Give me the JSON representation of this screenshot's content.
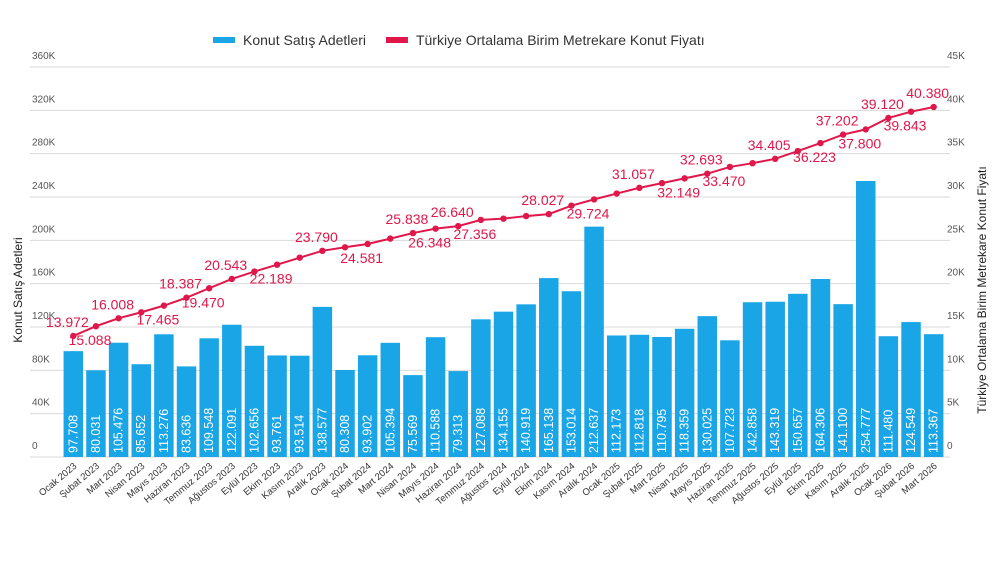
{
  "chart_data": {
    "type": "combo",
    "categories": [
      "Ocak 2023",
      "Şubat 2023",
      "Mart 2023",
      "Nisan 2023",
      "Mayıs 2023",
      "Haziran 2023",
      "Temmuz 2023",
      "Ağustos 2023",
      "Eylül 2023",
      "Ekim 2023",
      "Kasım 2023",
      "Aralık 2023",
      "Ocak 2024",
      "Şubat 2024",
      "Mart 2024",
      "Nisan 2024",
      "Mayıs 2024",
      "Haziran 2024",
      "Temmuz 2024",
      "Ağustos 2024",
      "Eylül 2024",
      "Ekim 2024",
      "Kasım 2024",
      "Aralık 2024",
      "Ocak 2025",
      "Şubat 2025",
      "Mart 2025",
      "Nisan 2025",
      "Mayıs 2025",
      "Haziran 2025",
      "Temmuz 2025",
      "Ağustos 2025",
      "Eylül 2025",
      "Ekim 2025",
      "Kasım 2025",
      "Aralık 2025",
      "Ocak 2026",
      "Şubat 2026",
      "Mart 2026"
    ],
    "series": [
      {
        "name": "Konut Satış Adetleri",
        "type": "bar",
        "color": "#1aa5e6",
        "values": [
          97708,
          80031,
          105476,
          85652,
          113276,
          83636,
          109548,
          122091,
          102656,
          93761,
          93514,
          138577,
          80308,
          93902,
          105394,
          75569,
          110588,
          79313,
          127088,
          134155,
          140919,
          165138,
          153014,
          212637,
          112173,
          112818,
          110795,
          118359,
          130025,
          107723,
          142858,
          143319,
          150657,
          164306,
          141100,
          254777,
          111480,
          124549,
          113367
        ],
        "value_labels": [
          "97.708",
          "80.031",
          "105.476",
          "85.652",
          "113.276",
          "83.636",
          "109.548",
          "122.091",
          "102.656",
          "93.761",
          "93.514",
          "138.577",
          "80.308",
          "93.902",
          "105.394",
          "75.569",
          "110.588",
          "79.313",
          "127.088",
          "134.155",
          "140.919",
          "165.138",
          "153.014",
          "212.637",
          "112.173",
          "112.818",
          "110.795",
          "118.359",
          "130.025",
          "107.723",
          "142.858",
          "143.319",
          "150.657",
          "164.306",
          "141.100",
          "254.777",
          "111.480",
          "124.549",
          "113.367"
        ]
      },
      {
        "name": "Türkiye Ortalama Birim Metrekare Konut Fiyatı",
        "type": "line",
        "axis": "y2",
        "color": "#e0174a",
        "values": [
          13972,
          15088,
          16008,
          16700,
          17465,
          18387,
          19470,
          20543,
          21400,
          22189,
          23000,
          23790,
          24200,
          24581,
          25200,
          25838,
          26348,
          26640,
          27356,
          27500,
          27800,
          28027,
          29000,
          29724,
          30400,
          31057,
          31600,
          32149,
          32693,
          33470,
          33900,
          34405,
          35300,
          36223,
          37202,
          37800,
          39120,
          39843,
          40380
        ],
        "value_labels": [
          "13.972",
          "15.088",
          "16.008",
          null,
          "17.465",
          "18.387",
          "19.470",
          "20.543",
          null,
          "22.189",
          null,
          "23.790",
          null,
          "24.581",
          null,
          "25.838",
          "26.348",
          "26.640",
          "27.356",
          null,
          null,
          "28.027",
          null,
          "29.724",
          null,
          "31.057",
          null,
          "32.149",
          "32.693",
          "33.470",
          null,
          "34.405",
          null,
          "36.223",
          "37.202",
          "37.800",
          "39.120",
          "39.843",
          "40.380"
        ]
      }
    ],
    "ylabel": "Konut Satış Adetleri",
    "y2label": "Türkiye Ortalama Birim Metrekare Konut Fiyatı",
    "ylim": [
      0,
      360000
    ],
    "yticks": [
      0,
      {
        "value": 40000,
        "label": "40K"
      },
      {
        "value": 80000,
        "label": "80K"
      },
      {
        "value": 120000,
        "label": "120K"
      },
      {
        "value": 160000,
        "label": "160K"
      },
      {
        "value": 200000,
        "label": "200K"
      },
      {
        "value": 240000,
        "label": "240K"
      },
      {
        "value": 280000,
        "label": "280K"
      },
      {
        "value": 320000,
        "label": "320K"
      },
      {
        "value": 360000,
        "label": "360K"
      }
    ],
    "y2lim": [
      0,
      45000
    ],
    "y2ticks": [
      0,
      {
        "value": 5000,
        "label": "5K"
      },
      {
        "value": 10000,
        "label": "10K"
      },
      {
        "value": 15000,
        "label": "15K"
      },
      {
        "value": 20000,
        "label": "20K"
      },
      {
        "value": 25000,
        "label": "25K"
      },
      {
        "value": 30000,
        "label": "30K"
      },
      {
        "value": 35000,
        "label": "35K"
      },
      {
        "value": 40000,
        "label": "40K"
      },
      {
        "value": 45000,
        "label": "45K"
      }
    ],
    "grid": true,
    "legend": "top"
  }
}
